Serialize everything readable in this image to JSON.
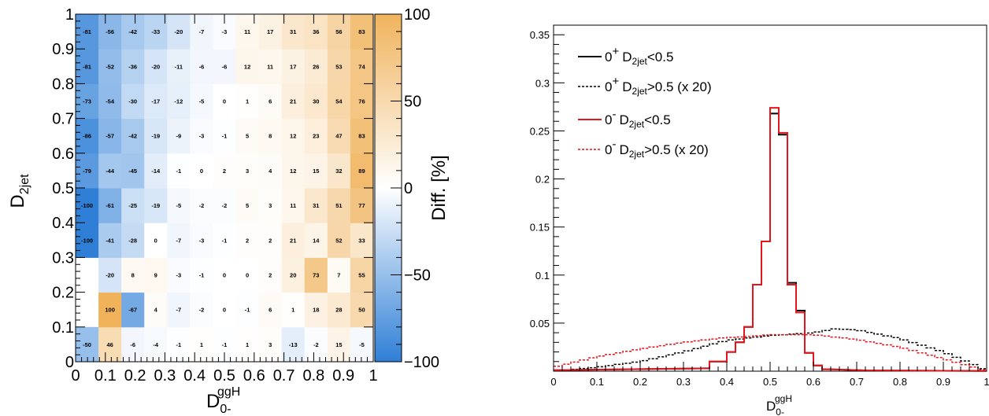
{
  "chart_data": [
    {
      "type": "heatmap",
      "xlabel": "D",
      "xlabel_sub": "0-",
      "xlabel_sup": "ggH",
      "ylabel": "D",
      "ylabel_sub": "2jet",
      "zlabel": "Diff. [%]",
      "xlim": [
        0,
        1
      ],
      "ylim": [
        0,
        1
      ],
      "zlim": [
        -100,
        100
      ],
      "x_ticks": [
        "0",
        "0.1",
        "0.2",
        "0.3",
        "0.4",
        "0.5",
        "0.6",
        "0.7",
        "0.8",
        "0.9",
        "1"
      ],
      "y_ticks": [
        "0",
        "0.1",
        "0.2",
        "0.3",
        "0.4",
        "0.5",
        "0.6",
        "0.7",
        "0.8",
        "0.9",
        "1"
      ],
      "z_ticks": [
        "100",
        "50",
        "0",
        "−50",
        "−100"
      ],
      "colormap": {
        "low": "#2f7fd6",
        "mid": "#ffffff",
        "high": "#f0b35c"
      },
      "x_bins": 13,
      "y_bins": 10,
      "rows": [
        {
          "y_bin": 0,
          "values": [
            -50,
            46,
            -6,
            -4,
            -1,
            1,
            -1,
            1,
            3,
            -13,
            -2,
            15,
            -5
          ]
        },
        {
          "y_bin": 1,
          "values": [
            null,
            100,
            -67,
            4,
            -7,
            -2,
            0,
            -1,
            6,
            1,
            18,
            28,
            50
          ]
        },
        {
          "y_bin": 2,
          "values": [
            null,
            -20,
            8,
            9,
            -3,
            -1,
            0,
            0,
            2,
            20,
            73,
            7,
            55
          ]
        },
        {
          "y_bin": 3,
          "values": [
            -100,
            -41,
            -28,
            0,
            -7,
            -3,
            -1,
            2,
            2,
            21,
            14,
            52,
            33
          ]
        },
        {
          "y_bin": 4,
          "values": [
            -100,
            -61,
            -25,
            -19,
            -5,
            -2,
            -2,
            5,
            3,
            11,
            31,
            51,
            77
          ]
        },
        {
          "y_bin": 5,
          "values": [
            -79,
            -44,
            -45,
            -14,
            -1,
            0,
            2,
            3,
            4,
            12,
            15,
            32,
            89
          ]
        },
        {
          "y_bin": 6,
          "values": [
            -86,
            -57,
            -42,
            -19,
            -9,
            -3,
            -1,
            5,
            8,
            12,
            23,
            47,
            83
          ]
        },
        {
          "y_bin": 7,
          "values": [
            -73,
            -54,
            -30,
            -17,
            -12,
            -5,
            0,
            1,
            6,
            21,
            30,
            54,
            76
          ]
        },
        {
          "y_bin": 8,
          "values": [
            -81,
            -52,
            -36,
            -20,
            -11,
            -6,
            -6,
            12,
            11,
            17,
            26,
            53,
            74
          ]
        },
        {
          "y_bin": 9,
          "values": [
            -81,
            -56,
            -42,
            -33,
            -20,
            -7,
            -3,
            11,
            17,
            31,
            36,
            56,
            83
          ]
        }
      ]
    },
    {
      "type": "line",
      "step": true,
      "xlabel": "D",
      "xlabel_sub": "0-",
      "xlabel_sup": "ggH",
      "xlim": [
        0,
        1
      ],
      "ylim": [
        0,
        0.36
      ],
      "x_ticks": [
        "0",
        "0.1",
        "0.2",
        "0.3",
        "0.4",
        "0.5",
        "0.6",
        "0.7",
        "0.8",
        "0.9",
        "1"
      ],
      "y_ticks": [
        "0.05",
        "0.1",
        "0.15",
        "0.2",
        "0.25",
        "0.3",
        "0.35"
      ],
      "legend_position": "top-left",
      "series": [
        {
          "name_main": "0",
          "name_sup": "+",
          "name_var": "D",
          "name_sub": "2jet",
          "name_tail": "<0.5",
          "color": "#000000",
          "dashed": false,
          "bin_edges": [
            0.36,
            0.4,
            0.42,
            0.44,
            0.46,
            0.48,
            0.5,
            0.52,
            0.54,
            0.56,
            0.58,
            0.6,
            0.62,
            0.64
          ],
          "values": [
            0.01,
            0.02,
            0.03,
            0.046,
            0.09,
            0.135,
            0.268,
            0.246,
            0.092,
            0.063,
            0.019,
            0.006,
            0.002
          ]
        },
        {
          "name_main": "0",
          "name_sup": "+",
          "name_var": "D",
          "name_sub": "2jet",
          "name_tail": ">0.5 (x 20)",
          "color": "#000000",
          "dashed": true,
          "x": [
            0.0,
            0.1,
            0.2,
            0.3,
            0.4,
            0.5,
            0.6,
            0.65,
            0.7,
            0.8,
            0.9,
            0.98,
            1.0
          ],
          "values": [
            0.0,
            0.004,
            0.01,
            0.02,
            0.032,
            0.037,
            0.04,
            0.044,
            0.043,
            0.034,
            0.02,
            0.005,
            0.0
          ]
        },
        {
          "name_main": "0",
          "name_sup": "-",
          "name_var": "D",
          "name_sub": "2jet",
          "name_tail": "<0.5",
          "color": "#e4151c",
          "dashed": false,
          "bin_edges": [
            0.36,
            0.4,
            0.42,
            0.44,
            0.46,
            0.48,
            0.5,
            0.52,
            0.54,
            0.56,
            0.58,
            0.6,
            0.62,
            0.64
          ],
          "values": [
            0.01,
            0.02,
            0.03,
            0.046,
            0.09,
            0.135,
            0.274,
            0.248,
            0.09,
            0.061,
            0.019,
            0.006,
            0.002
          ]
        },
        {
          "name_main": "0",
          "name_sup": "-",
          "name_var": "D",
          "name_sub": "2jet",
          "name_tail": ">0.5 (x 20)",
          "color": "#e4151c",
          "dashed": true,
          "x": [
            0.0,
            0.1,
            0.2,
            0.3,
            0.4,
            0.45,
            0.5,
            0.6,
            0.7,
            0.8,
            0.9,
            0.98,
            1.0
          ],
          "values": [
            0.004,
            0.015,
            0.023,
            0.03,
            0.035,
            0.036,
            0.038,
            0.038,
            0.033,
            0.025,
            0.013,
            0.003,
            0.0
          ]
        }
      ]
    }
  ]
}
